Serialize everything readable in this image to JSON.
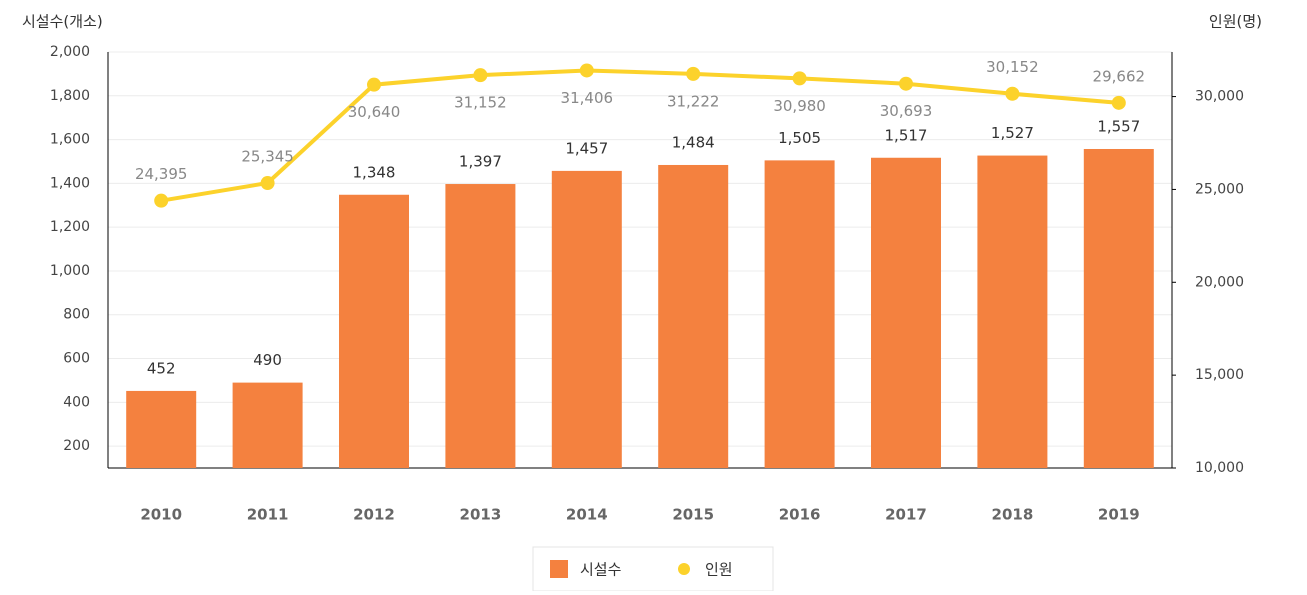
{
  "chart_data": {
    "type": "combo",
    "y_label": "시설수(개소)",
    "y2_label": "인원(명)",
    "categories": [
      "2010",
      "2011",
      "2012",
      "2013",
      "2014",
      "2015",
      "2016",
      "2017",
      "2018",
      "2019"
    ],
    "series": [
      {
        "name": "시설수",
        "type": "bar",
        "color": "#f4813f",
        "axis": "y",
        "values": [
          452,
          490,
          1348,
          1397,
          1457,
          1484,
          1505,
          1517,
          1527,
          1557
        ],
        "value_labels": [
          "452",
          "490",
          "1,348",
          "1,397",
          "1,457",
          "1,484",
          "1,505",
          "1,517",
          "1,527",
          "1,557"
        ]
      },
      {
        "name": "인원",
        "type": "line",
        "color": "#fcd22b",
        "axis": "y2",
        "values": [
          24395,
          25345,
          30640,
          31152,
          31406,
          31222,
          30980,
          30693,
          30152,
          29662
        ],
        "value_labels": [
          "24,395",
          "25,345",
          "30,640",
          "31,152",
          "31,406",
          "31,222",
          "30,980",
          "30,693",
          "30,152",
          "29,662"
        ]
      }
    ],
    "ylim": [
      100,
      2000
    ],
    "yticks": [
      200,
      400,
      600,
      800,
      {
        "value": 1000,
        "label": "1,000"
      },
      {
        "value": 1200,
        "label": "1,200"
      },
      {
        "value": 1400,
        "label": "1,400"
      },
      {
        "value": 1600,
        "label": "1,600"
      },
      {
        "value": 1800,
        "label": "1,800"
      },
      {
        "value": 2000,
        "label": "2,000"
      }
    ],
    "y2lim": [
      10000,
      32400
    ],
    "y2ticks": [
      {
        "value": 10000,
        "label": "10,000"
      },
      {
        "value": 15000,
        "label": "15,000"
      },
      {
        "value": 20000,
        "label": "20,000"
      },
      {
        "value": 25000,
        "label": "25,000"
      },
      {
        "value": 30000,
        "label": "30,000"
      }
    ],
    "grid": true,
    "legend": "bottom"
  }
}
